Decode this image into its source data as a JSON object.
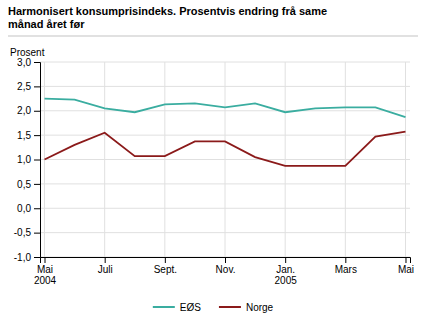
{
  "chart_data": {
    "type": "line",
    "title": "Harmonisert konsumprisindeks. Prosentvis endring frå same\nmånad året før",
    "y_label": "Prosent",
    "categories": [
      "Mai\n2004",
      null,
      "Juli",
      null,
      "Sept.",
      null,
      "Nov.",
      null,
      "Jan.\n2005",
      null,
      "Mars",
      null,
      "Mai"
    ],
    "series": [
      {
        "name": "EØS",
        "color": "#3aada0",
        "values": [
          2.25,
          2.23,
          2.05,
          1.97,
          2.13,
          2.15,
          2.07,
          2.15,
          1.97,
          2.05,
          2.07,
          2.07,
          1.87
        ]
      },
      {
        "name": "Norge",
        "color": "#8b1a1a",
        "values": [
          1.0,
          1.3,
          1.55,
          1.07,
          1.07,
          1.37,
          1.37,
          1.05,
          0.87,
          0.87,
          0.87,
          1.47,
          1.57
        ]
      }
    ],
    "ylim": [
      -1.0,
      3.0
    ],
    "yticks": [
      {
        "value": -1.0,
        "label": "-1,0"
      },
      {
        "value": -0.5,
        "label": "-0,5"
      },
      {
        "value": 0.0,
        "label": "0,0"
      },
      {
        "value": 0.5,
        "label": "0,5"
      },
      {
        "value": 1.0,
        "label": "1,0"
      },
      {
        "value": 1.5,
        "label": "1,5"
      },
      {
        "value": 2.0,
        "label": "2,0"
      },
      {
        "value": 2.5,
        "label": "2,5"
      },
      {
        "value": 3.0,
        "label": "3,0"
      }
    ],
    "grid": true,
    "legend": "bottom"
  }
}
